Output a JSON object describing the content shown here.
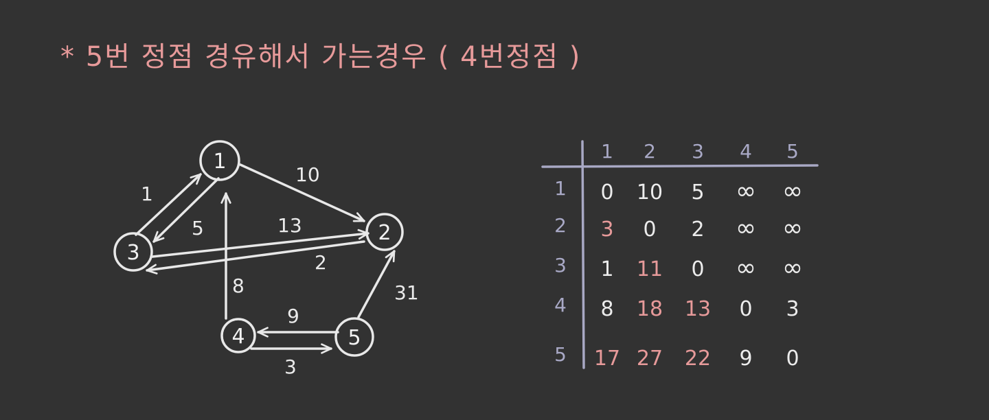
{
  "title": "* 5번 정점 경유해서 가는경우 ( 4번정점 )",
  "colors": {
    "background": "#323232",
    "chalk_white": "#ececec",
    "chalk_pink": "#e79a9a",
    "chalk_lavender": "#a9a9c6"
  },
  "graph": {
    "nodes": [
      "1",
      "2",
      "3",
      "4",
      "5"
    ],
    "edges": [
      {
        "from": "3",
        "to": "1",
        "weight": "1"
      },
      {
        "from": "1",
        "to": "3",
        "weight": "5"
      },
      {
        "from": "1",
        "to": "2",
        "weight": "10"
      },
      {
        "from": "3",
        "to": "2",
        "weight": "13"
      },
      {
        "from": "2",
        "to": "3",
        "weight": "2"
      },
      {
        "from": "4",
        "to": "1",
        "weight": "8"
      },
      {
        "from": "5",
        "to": "4",
        "weight": "9"
      },
      {
        "from": "4",
        "to": "5",
        "weight": "3"
      },
      {
        "from": "5",
        "to": "2",
        "weight": "31"
      }
    ]
  },
  "matrix": {
    "col_headers": [
      "1",
      "2",
      "3",
      "4",
      "5"
    ],
    "row_headers": [
      "1",
      "2",
      "3",
      "4",
      "5"
    ],
    "rows": [
      [
        {
          "v": "0",
          "hl": false
        },
        {
          "v": "10",
          "hl": false
        },
        {
          "v": "5",
          "hl": false
        },
        {
          "v": "∞",
          "hl": false
        },
        {
          "v": "∞",
          "hl": false
        }
      ],
      [
        {
          "v": "3",
          "hl": true
        },
        {
          "v": "0",
          "hl": false
        },
        {
          "v": "2",
          "hl": false
        },
        {
          "v": "∞",
          "hl": false
        },
        {
          "v": "∞",
          "hl": false
        }
      ],
      [
        {
          "v": "1",
          "hl": false
        },
        {
          "v": "11",
          "hl": true
        },
        {
          "v": "0",
          "hl": false
        },
        {
          "v": "∞",
          "hl": false
        },
        {
          "v": "∞",
          "hl": false
        }
      ],
      [
        {
          "v": "8",
          "hl": false
        },
        {
          "v": "18",
          "hl": true
        },
        {
          "v": "13",
          "hl": true
        },
        {
          "v": "0",
          "hl": false
        },
        {
          "v": "3",
          "hl": false
        }
      ],
      [
        {
          "v": "17",
          "hl": true
        },
        {
          "v": "27",
          "hl": true
        },
        {
          "v": "22",
          "hl": true
        },
        {
          "v": "9",
          "hl": false
        },
        {
          "v": "0",
          "hl": false
        }
      ]
    ]
  }
}
